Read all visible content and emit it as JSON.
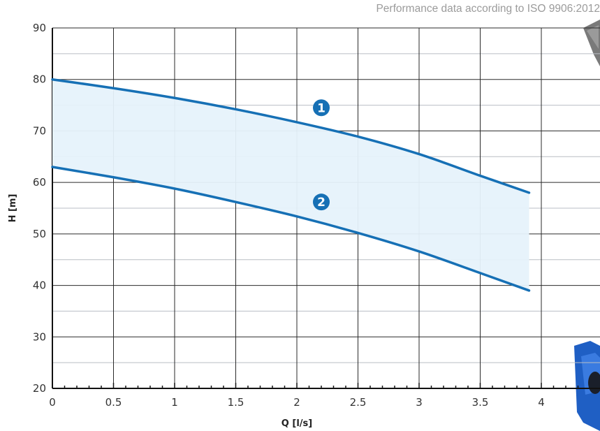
{
  "note": "Performance data according to ISO 9906:2012",
  "colors": {
    "curve": "#1670b5",
    "band": "#e6f2fb",
    "badge": "#1670b5",
    "grid_major": "#2a2a2a",
    "grid_minor": "#b9bec4"
  },
  "chart_data": {
    "type": "line",
    "title": "",
    "xlabel": "Q [l/s]",
    "ylabel": "H [m]",
    "xlim": [
      0,
      4.3
    ],
    "ylim": [
      20,
      90
    ],
    "xticks": [
      0,
      0.5,
      1,
      1.5,
      2,
      2.5,
      3,
      3.5,
      4
    ],
    "xtick_labels": [
      "0",
      "0.5",
      "1",
      "1.5",
      "2",
      "2.5",
      "3",
      "3.5",
      "4"
    ],
    "yticks": [
      20,
      30,
      40,
      50,
      60,
      70,
      80,
      90
    ],
    "ytick_labels": [
      "20",
      "30",
      "40",
      "50",
      "60",
      "70",
      "80",
      "90"
    ],
    "grid": true,
    "shaded_region_between_series": true,
    "series": [
      {
        "name": "1",
        "x": [
          0,
          0.5,
          1,
          1.5,
          2,
          2.5,
          3,
          3.5,
          3.9
        ],
        "y": [
          80,
          78.3,
          76.4,
          74.2,
          71.7,
          68.9,
          65.5,
          61.3,
          58
        ]
      },
      {
        "name": "2",
        "x": [
          0,
          0.5,
          1,
          1.5,
          2,
          2.5,
          3,
          3.5,
          3.9
        ],
        "y": [
          63,
          61,
          58.8,
          56.2,
          53.4,
          50.2,
          46.6,
          42.4,
          39
        ]
      }
    ],
    "curve_markers": [
      {
        "label": "1",
        "x": 2.2,
        "y": 74.5
      },
      {
        "label": "2",
        "x": 2.2,
        "y": 56.2
      }
    ]
  }
}
